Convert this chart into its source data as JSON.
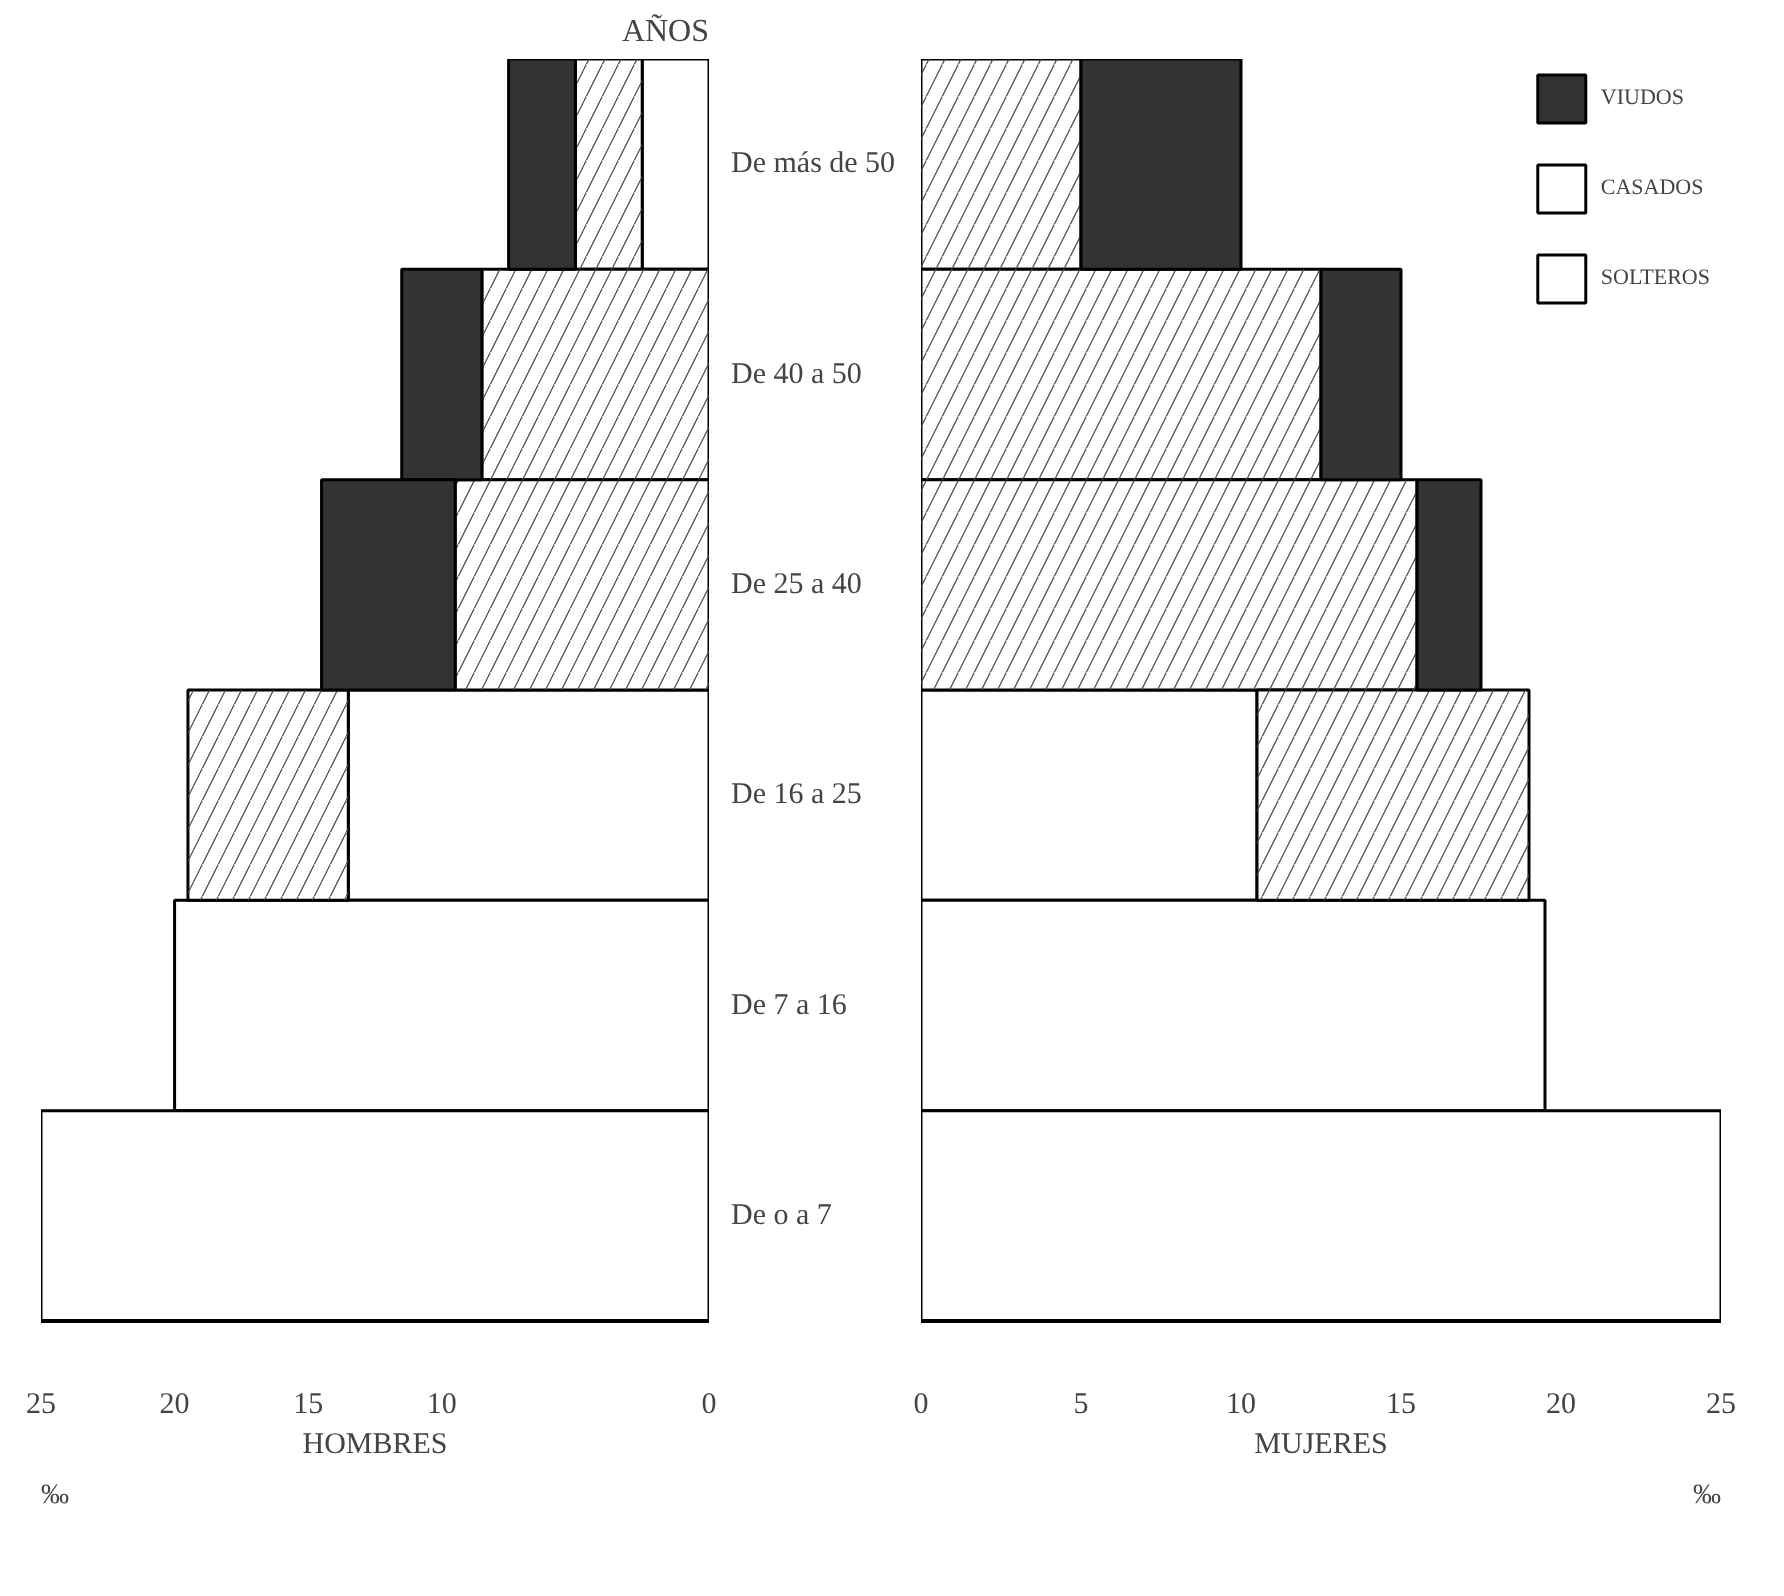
{
  "chart_data": [
    {
      "type": "bar",
      "orientation": "horizontal",
      "stacked": true,
      "title": "AÑOS",
      "xlabel": "HOMBRES",
      "annotations": [
        "‰"
      ],
      "categories": [
        "De más de 50",
        "De 40 a 50",
        "De 25 a 40",
        "De 16 a 25",
        "De 7 a 16",
        "De o a 7"
      ],
      "series": [
        {
          "color": "#ffffff",
          "values": [
            2.5,
            0,
            0,
            13.5,
            20,
            25
          ]
        },
        {
          "color": "#ffffff",
          "values": [
            2.5,
            8.5,
            9.5,
            6,
            0,
            0
          ]
        },
        {
          "color": "#333333",
          "values": [
            2.5,
            3,
            5,
            0,
            0,
            0
          ]
        }
      ],
      "xlim": [
        25,
        0
      ],
      "xticks": [
        25,
        20,
        15,
        10,
        0
      ],
      "grid": false,
      "legend": false
    },
    {
      "type": "bar",
      "orientation": "horizontal",
      "stacked": true,
      "xlabel": "MUJERES",
      "annotations": [
        "‰"
      ],
      "categories": [
        "De más de 50",
        "De 40 a 50",
        "De 25 a 40",
        "De 16 a 25",
        "De 7 a 16",
        "De o a 7"
      ],
      "series": [
        {
          "name": "SOLTEROS",
          "color": "#ffffff",
          "values": [
            0,
            0,
            0,
            10.5,
            19.5,
            25
          ]
        },
        {
          "name": "CASADOS",
          "color": "#ffffff",
          "values": [
            5,
            12.5,
            15.5,
            8.5,
            0,
            0
          ]
        },
        {
          "name": "VIUDOS",
          "color": "#333333",
          "values": [
            5,
            2.5,
            2,
            0,
            0,
            0
          ]
        }
      ],
      "xlim": [
        0,
        25
      ],
      "xticks": [
        0,
        5,
        10,
        15,
        20,
        25
      ],
      "grid": false,
      "legend": "top right",
      "tick_labels": "x"
    }
  ]
}
